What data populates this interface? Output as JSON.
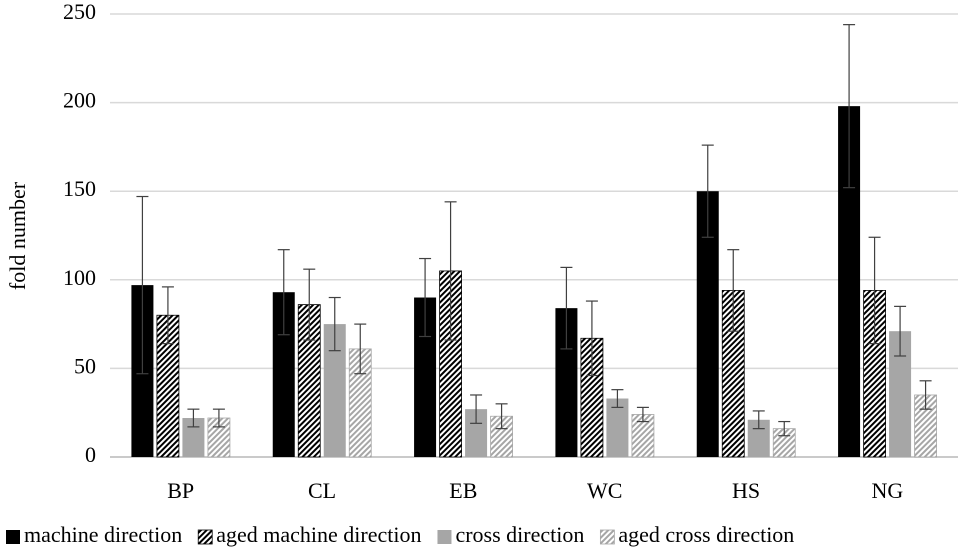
{
  "chart_data": {
    "type": "bar",
    "y_label": "fold number",
    "categories": [
      "BP",
      "CL",
      "EB",
      "WC",
      "HS",
      "NG"
    ],
    "ylim": [
      0,
      250
    ],
    "yticks": [
      0,
      50,
      100,
      150,
      200,
      250
    ],
    "grid": true,
    "legend": "bottom",
    "series": [
      {
        "name": "machine direction",
        "color": "#000000",
        "pattern": "solid",
        "values": [
          97,
          93,
          90,
          84,
          150,
          198
        ],
        "errors": [
          50,
          24,
          22,
          23,
          26,
          46
        ]
      },
      {
        "name": "aged machine direction",
        "color": "#000000",
        "pattern": "hatch",
        "values": [
          80,
          86,
          105,
          67,
          94,
          94
        ],
        "errors": [
          16,
          20,
          39,
          21,
          23,
          30
        ]
      },
      {
        "name": "cross direction",
        "color": "#a6a6a6",
        "pattern": "solid",
        "values": [
          22,
          75,
          27,
          33,
          21,
          71
        ],
        "errors": [
          5,
          15,
          8,
          5,
          5,
          14
        ]
      },
      {
        "name": "aged cross direction",
        "color": "#a6a6a6",
        "pattern": "hatch",
        "values": [
          22,
          61,
          23,
          24,
          16,
          35
        ],
        "errors": [
          5,
          14,
          7,
          4,
          4,
          8
        ]
      }
    ]
  }
}
